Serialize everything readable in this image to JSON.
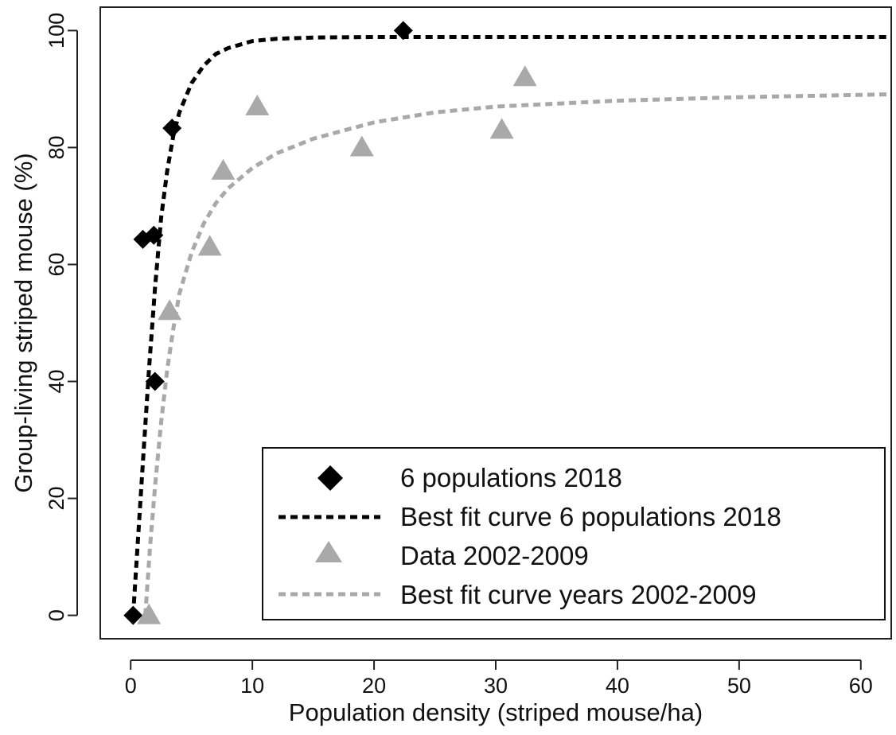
{
  "chart_data": {
    "type": "scatter",
    "title": "",
    "xlabel": "Population density (striped mouse/ha)",
    "ylabel": "Group-living striped mouse (%)",
    "xlim": [
      -2.5,
      62.5
    ],
    "ylim": [
      -4,
      104
    ],
    "x_ticks": [
      0,
      10,
      20,
      30,
      40,
      50,
      60
    ],
    "y_ticks": [
      0,
      20,
      40,
      60,
      80,
      100
    ],
    "x_tick_labels": [
      "0",
      "10",
      "20",
      "30",
      "40",
      "50",
      "60"
    ],
    "y_tick_labels": [
      "0",
      "20",
      "40",
      "60",
      "80",
      "100"
    ],
    "grid": false,
    "legend_position": "bottom-right",
    "series": [
      {
        "name": "6 populations 2018",
        "kind": "points",
        "marker": "diamond",
        "color": "#000000",
        "x": [
          0.2,
          1.0,
          1.9,
          2.0,
          3.4,
          22.4
        ],
        "y": [
          0,
          64.3,
          65,
          40,
          83.3,
          100
        ]
      },
      {
        "name": "Best fit curve 6 populations 2018",
        "kind": "curve",
        "line_style": "dashed",
        "color": "#000000",
        "x": [
          0.2,
          1.0,
          1.5,
          2.0,
          2.5,
          3.0,
          3.5,
          4.0,
          5.0,
          6.0,
          7.0,
          8.0,
          10.0,
          12.0,
          15.0,
          20.0,
          30.0,
          40.0,
          50.0,
          62.5
        ],
        "y": [
          0,
          26,
          42,
          56,
          68,
          76,
          82,
          86,
          91,
          94,
          96,
          97,
          98.2,
          98.6,
          98.8,
          98.9,
          98.9,
          98.9,
          98.9,
          98.9
        ]
      },
      {
        "name": "Data 2002-2009",
        "kind": "points",
        "marker": "triangle",
        "color": "#a9a9a9",
        "x": [
          1.5,
          3.2,
          6.5,
          7.6,
          10.4,
          19.0,
          30.5,
          32.4
        ],
        "y": [
          0,
          52,
          63,
          76,
          87,
          80,
          83,
          92
        ]
      },
      {
        "name": "Best fit curve years 2002-2009",
        "kind": "curve",
        "line_style": "dashed",
        "color": "#a9a9a9",
        "x": [
          1.2,
          1.6,
          2.0,
          2.5,
          3.0,
          3.5,
          4.0,
          5.0,
          6.0,
          7.0,
          8.0,
          10.0,
          12.0,
          15.0,
          20.0,
          25.0,
          30.0,
          40.0,
          50.0,
          62.5
        ],
        "y": [
          0,
          12,
          22,
          33,
          42,
          49,
          55,
          62,
          67,
          70.5,
          73,
          76.5,
          79,
          81.5,
          84.3,
          86,
          87,
          88,
          88.6,
          89.1
        ]
      }
    ]
  }
}
